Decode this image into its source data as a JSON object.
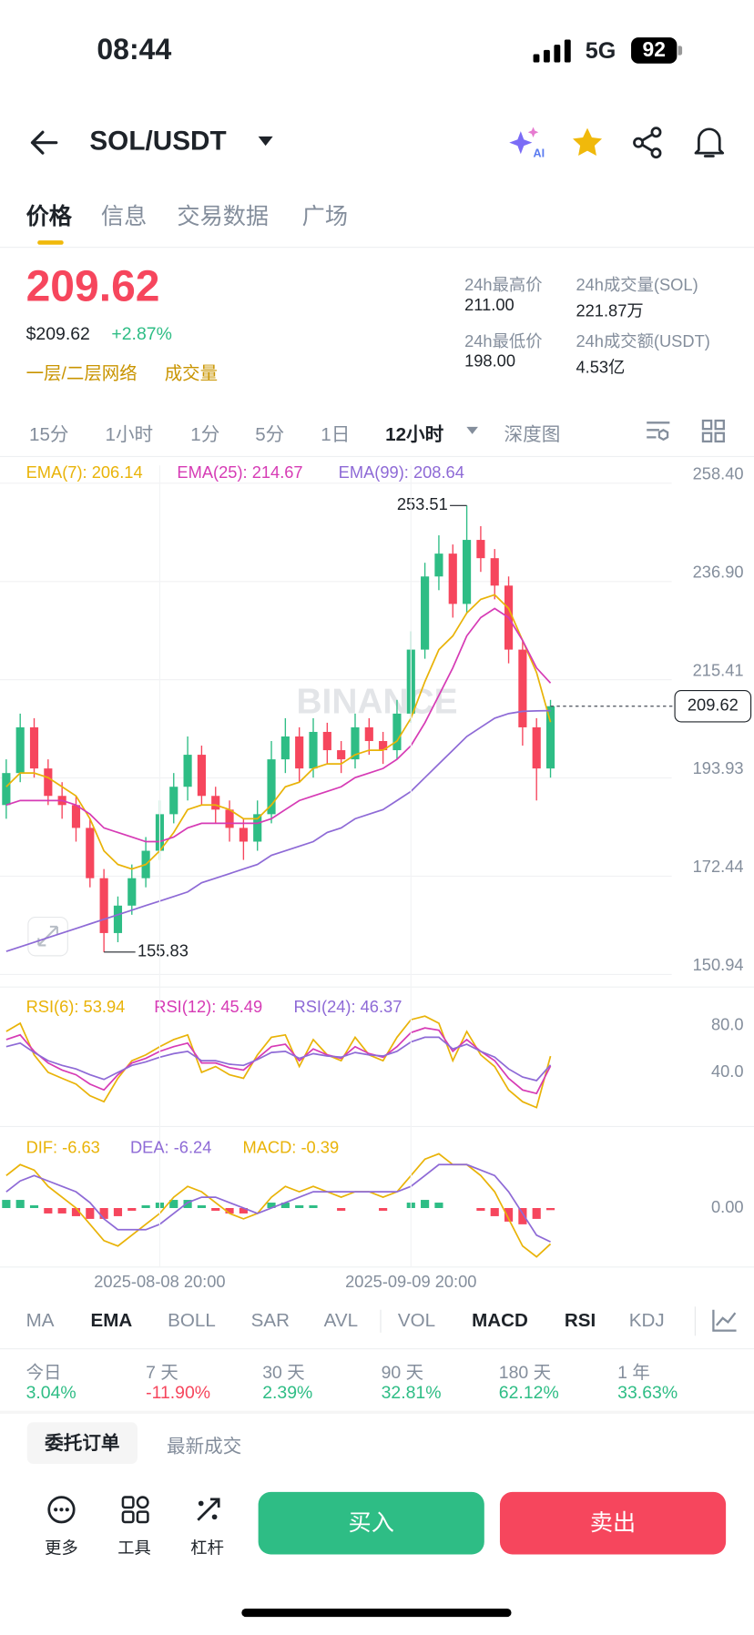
{
  "status_bar": {
    "time": "08:44",
    "network": "5G",
    "battery": "92"
  },
  "header": {
    "pair": "SOL/USDT",
    "ai_badge": "AI"
  },
  "tabs": [
    "价格",
    "信息",
    "交易数据",
    "广场"
  ],
  "price": {
    "last": "209.62",
    "usd": "$209.62",
    "change": "+2.87%",
    "tags": [
      "一层/二层网络",
      "成交量"
    ]
  },
  "stats": [
    {
      "label": "24h最高价",
      "value": "211.00"
    },
    {
      "label": "24h成交量(SOL)",
      "value": "221.87万"
    },
    {
      "label": "24h最低价",
      "value": "198.00"
    },
    {
      "label": "24h成交额(USDT)",
      "value": "4.53亿"
    }
  ],
  "intervals": [
    "15分",
    "1小时",
    "1分",
    "5分",
    "1日",
    "12小时",
    "深度图"
  ],
  "chart_data": [
    {
      "type": "candlestick",
      "watermark": "BINANCE",
      "open": [
        188,
        195,
        205,
        196,
        190,
        188,
        183,
        172,
        160,
        166,
        172,
        178,
        186,
        192,
        199,
        190,
        187,
        183,
        180,
        186,
        198,
        203,
        196,
        204,
        200,
        198,
        205,
        202,
        200,
        208,
        222,
        238,
        243,
        232,
        246,
        242,
        236,
        222,
        205,
        196
      ],
      "high": [
        198,
        208,
        207,
        198,
        193,
        190,
        185,
        174,
        168,
        175,
        181,
        189,
        195,
        203,
        201,
        192,
        189,
        185,
        189,
        202,
        207,
        205,
        207,
        206,
        202,
        208,
        207,
        204,
        211,
        226,
        241,
        247,
        245,
        253.51,
        249,
        244,
        238,
        224,
        207,
        211
      ],
      "low": [
        185,
        193,
        194,
        188,
        185,
        180,
        170,
        155.83,
        158,
        164,
        170,
        176,
        184,
        189,
        188,
        184,
        180,
        176,
        178,
        184,
        195,
        193,
        194,
        197,
        195,
        196,
        199,
        197,
        198,
        206,
        220,
        235,
        229,
        230,
        239,
        233,
        219,
        201,
        189,
        194
      ],
      "close": [
        195,
        205,
        196,
        190,
        188,
        183,
        172,
        160,
        166,
        172,
        178,
        186,
        192,
        199,
        190,
        187,
        183,
        180,
        186,
        198,
        203,
        196,
        204,
        200,
        198,
        205,
        202,
        200,
        208,
        222,
        238,
        243,
        232,
        246,
        242,
        236,
        222,
        205,
        196,
        209.62
      ],
      "up_color": "#2ebd85",
      "down_color": "#f6465d",
      "series": [
        {
          "name": "EMA(7): 206.14",
          "color": "#e9b308",
          "values": [
            192,
            195,
            195,
            194,
            192,
            190,
            185,
            178,
            175,
            174,
            175,
            178,
            182,
            187,
            188,
            188,
            187,
            185,
            185,
            188,
            192,
            193,
            196,
            197,
            197,
            199,
            200,
            200,
            202,
            207,
            215,
            222,
            225,
            230,
            233,
            234,
            231,
            224,
            217,
            206.14
          ]
        },
        {
          "name": "EMA(25): 214.67",
          "color": "#d63bb5",
          "values": [
            188,
            189,
            189,
            189,
            189,
            188,
            186,
            183,
            182,
            181,
            180,
            180,
            181,
            183,
            184,
            184,
            184,
            184,
            184,
            185,
            187,
            189,
            190,
            191,
            192,
            194,
            195,
            196,
            198,
            201,
            206,
            212,
            218,
            225,
            229,
            231,
            229,
            224,
            218,
            214.67
          ]
        },
        {
          "name": "EMA(99): 208.64",
          "color": "#8e6ad6",
          "values": [
            156,
            157,
            158,
            159,
            160,
            161,
            162,
            163,
            164,
            165,
            166,
            167,
            168,
            169,
            171,
            172,
            173,
            174,
            175,
            177,
            178,
            179,
            180,
            182,
            183,
            185,
            186,
            187,
            189,
            191,
            194,
            197,
            200,
            203,
            205,
            207,
            208,
            208.5,
            208.6,
            208.64
          ]
        }
      ],
      "ylim": [
        148.2,
        262.3
      ],
      "yticks": [
        {
          "value": 258.4,
          "label": "258.40"
        },
        {
          "value": 236.9,
          "label": "236.90"
        },
        215.41,
        193.93,
        172.44,
        150.94
      ],
      "grid": true,
      "high_label": 253.51,
      "low_label": 155.83,
      "last_price": 209.62
    },
    {
      "type": "line",
      "series": [
        {
          "name": "RSI(6): 53.94",
          "color": "#e9b308",
          "values": [
            75,
            82,
            55,
            40,
            35,
            30,
            20,
            15,
            35,
            50,
            55,
            62,
            68,
            72,
            40,
            45,
            38,
            35,
            55,
            70,
            72,
            45,
            68,
            55,
            50,
            70,
            55,
            50,
            70,
            85,
            88,
            82,
            50,
            75,
            55,
            45,
            25,
            15,
            10,
            53.94
          ]
        },
        {
          "name": "RSI(12): 45.49",
          "color": "#d63bb5",
          "values": [
            68,
            72,
            58,
            48,
            42,
            38,
            30,
            25,
            38,
            48,
            52,
            58,
            62,
            65,
            48,
            48,
            44,
            42,
            52,
            62,
            64,
            50,
            60,
            55,
            52,
            62,
            56,
            53,
            62,
            74,
            78,
            76,
            58,
            68,
            58,
            50,
            35,
            25,
            22,
            45.49
          ]
        },
        {
          "name": "RSI(24): 46.37",
          "color": "#8e6ad6",
          "values": [
            62,
            65,
            57,
            50,
            46,
            43,
            38,
            34,
            40,
            46,
            49,
            53,
            56,
            58,
            50,
            50,
            47,
            46,
            51,
            57,
            58,
            52,
            56,
            54,
            53,
            57,
            55,
            54,
            58,
            66,
            70,
            70,
            60,
            64,
            58,
            53,
            43,
            36,
            33,
            46.37
          ]
        }
      ],
      "ylim": [
        -4.4,
        106.7
      ],
      "yticks": [
        {
          "value": 80,
          "label": "80.0"
        },
        {
          "value": 40,
          "label": "40.0"
        }
      ],
      "grid": false
    },
    {
      "type": "macd",
      "categories": [
        null,
        null,
        null,
        null,
        null,
        null,
        null,
        null,
        null,
        null,
        null,
        "2025-08-08 20:00",
        null,
        null,
        null,
        null,
        null,
        null,
        null,
        null,
        null,
        null,
        null,
        null,
        null,
        null,
        null,
        null,
        null,
        "2025-09-09 20:00",
        null,
        null,
        null,
        null,
        null,
        null,
        null,
        null,
        null,
        null
      ],
      "series": [
        {
          "name": "DIF: -6.63",
          "color": "#e9b308",
          "values": [
            6,
            8,
            7,
            4,
            2,
            0,
            -3,
            -6,
            -7,
            -5,
            -3,
            -1,
            2,
            4,
            3,
            1,
            -1,
            -2,
            -1,
            2,
            4,
            3,
            4,
            3,
            2,
            3,
            3,
            2,
            3,
            6,
            9,
            10,
            8,
            8,
            6,
            3,
            -2,
            -7,
            -9,
            -6.63
          ]
        },
        {
          "name": "DEA: -6.24",
          "color": "#8e6ad6",
          "values": [
            3,
            5,
            6,
            5,
            4,
            3,
            1,
            -2,
            -4,
            -4,
            -4,
            -3,
            -1,
            1,
            2,
            2,
            1,
            0,
            -1,
            0,
            1,
            2,
            3,
            3,
            3,
            3,
            3,
            3,
            3,
            4,
            6,
            8,
            8,
            8,
            7,
            6,
            3,
            -1,
            -5,
            -6.24
          ]
        },
        {
          "name": "MACD: -0.39",
          "color": "#e9b308",
          "style": "histogram",
          "up_color": "#2ebd85",
          "down_color": "#f6465d",
          "values": [
            1.5,
            1.5,
            0.5,
            -1,
            -1,
            -1.5,
            -2,
            -2,
            -1.5,
            -0.5,
            0.5,
            1,
            1.5,
            1.5,
            0.5,
            -0.5,
            -1,
            -1,
            0,
            1,
            1,
            0.5,
            0.5,
            0,
            -0.5,
            0,
            0,
            -0.5,
            0,
            1,
            1.5,
            1,
            0,
            0,
            -0.5,
            -1.5,
            -2.5,
            -3,
            -2,
            -0.39
          ]
        }
      ],
      "ylim": [
        -10.5,
        13.5
      ],
      "yticks": [
        {
          "value": 0,
          "label": "0.00"
        }
      ],
      "grid": false
    }
  ],
  "indicators": [
    "MA",
    "EMA",
    "BOLL",
    "SAR",
    "AVL",
    "VOL",
    "MACD",
    "RSI",
    "KDJ"
  ],
  "performance": [
    {
      "period": "今日",
      "change": "3.04%"
    },
    {
      "period": "7 天",
      "change": "-11.90%"
    },
    {
      "period": "30 天",
      "change": "2.39%"
    },
    {
      "period": "90 天",
      "change": "32.81%"
    },
    {
      "period": "180 天",
      "change": "62.12%"
    },
    {
      "period": "1 年",
      "change": "33.63%"
    }
  ],
  "order_tabs": [
    "委托订单",
    "最新成交"
  ],
  "actions": [
    "更多",
    "工具",
    "杠杆"
  ],
  "buttons": {
    "buy": "买入",
    "sell": "卖出"
  }
}
